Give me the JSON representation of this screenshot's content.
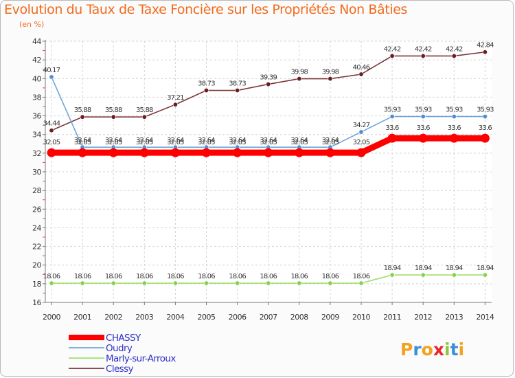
{
  "chart_data": {
    "type": "line",
    "title": "Evolution du Taux de Taxe Foncière sur les Propriétés Non Bâties",
    "ylabel": "(en %)",
    "xlabel": "",
    "x": [
      "2000",
      "2001",
      "2002",
      "2003",
      "2004",
      "2005",
      "2006",
      "2007",
      "2008",
      "2009",
      "2010",
      "2011",
      "2012",
      "2013",
      "2014"
    ],
    "yticks": [
      "16",
      "18",
      "20",
      "22",
      "24",
      "26",
      "28",
      "30",
      "32",
      "34",
      "36",
      "38",
      "40",
      "42",
      "44"
    ],
    "ylim": [
      16,
      44
    ],
    "grid": true,
    "legend_position": "bottom-left",
    "series": [
      {
        "name": "CHASSY",
        "color": "#ff0000",
        "values": [
          32.05,
          32.05,
          32.05,
          32.05,
          32.05,
          32.05,
          32.05,
          32.05,
          32.05,
          32.05,
          32.05,
          33.6,
          33.6,
          33.6,
          33.6
        ],
        "labels": [
          "32.05",
          "32.05",
          "32.05",
          "32.05",
          "32.05",
          "32.05",
          "32.05",
          "32.05",
          "32.05",
          "32.05",
          "32.05",
          "33.6",
          "33.6",
          "33.6",
          "33.6"
        ]
      },
      {
        "name": "Oudry",
        "color": "#6ea6d8",
        "values": [
          40.17,
          32.64,
          32.64,
          32.64,
          32.64,
          32.64,
          32.64,
          32.64,
          32.64,
          32.64,
          34.27,
          35.93,
          35.93,
          35.93,
          35.93
        ],
        "labels": [
          "40.17",
          "32.64",
          "32.64",
          "32.64",
          "32.64",
          "32.64",
          "32.64",
          "32.64",
          "32.64",
          "32.64",
          "34.27",
          "35.93",
          "35.93",
          "35.93",
          "35.93"
        ]
      },
      {
        "name": "Marly-sur-Arroux",
        "color": "#9ee06a",
        "values": [
          18.06,
          18.06,
          18.06,
          18.06,
          18.06,
          18.06,
          18.06,
          18.06,
          18.06,
          18.06,
          18.06,
          18.94,
          18.94,
          18.94,
          18.94
        ],
        "labels": [
          "18.06",
          "18.06",
          "18.06",
          "18.06",
          "18.06",
          "18.06",
          "18.06",
          "18.06",
          "18.06",
          "18.06",
          "18.06",
          "18.94",
          "18.94",
          "18.94",
          "18.94"
        ]
      },
      {
        "name": "Clessy",
        "color": "#7b3438",
        "values": [
          34.44,
          35.88,
          35.88,
          35.88,
          37.21,
          38.73,
          38.73,
          39.39,
          39.98,
          39.98,
          40.46,
          42.42,
          42.42,
          42.42,
          42.84
        ],
        "labels": [
          "34.44",
          "35.88",
          "35.88",
          "35.88",
          "37.21",
          "38.73",
          "38.73",
          "39.39",
          "39.98",
          "39.98",
          "40.46",
          "42.42",
          "42.42",
          "42.42",
          "42.84"
        ]
      }
    ]
  },
  "logo": {
    "text": "Proxiti",
    "colors": [
      "#f4a11d",
      "#3a8fd8",
      "#f4a11d",
      "#e8262c",
      "#8cc63f",
      "#3a8fd8",
      "#f4a11d"
    ]
  }
}
